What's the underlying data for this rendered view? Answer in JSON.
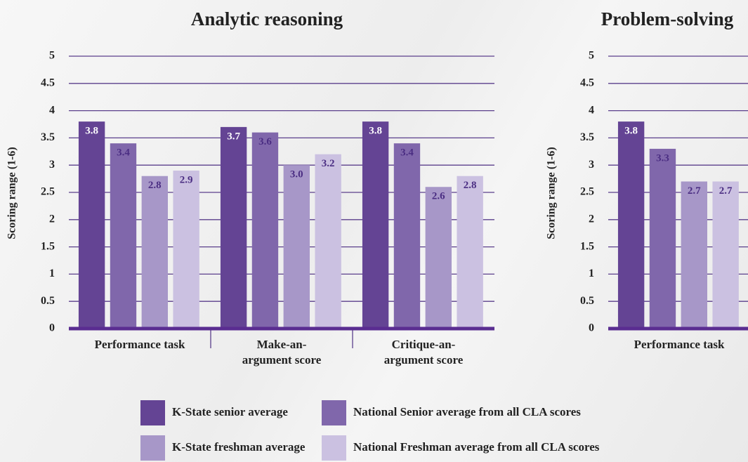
{
  "chart_data": [
    {
      "type": "bar",
      "title": "Analytic reasoning",
      "y_label": "Scoring range (1-6)",
      "categories": [
        "Performance task",
        "Make-an-argument score",
        "Critique-an-argument score"
      ],
      "series": [
        {
          "name": "K-State senior average",
          "color": "#644494",
          "values": [
            3.8,
            3.7,
            3.8
          ]
        },
        {
          "name": "National Senior average from all CLA scores",
          "color": "#8067ab",
          "values": [
            3.4,
            3.6,
            3.4
          ]
        },
        {
          "name": "K-State freshman average",
          "color": "#a797c8",
          "values": [
            2.8,
            3.0,
            2.6
          ],
          "value_labels": [
            "2.8",
            "3.0",
            "2.6"
          ]
        },
        {
          "name": "National Freshman average from all CLA scores",
          "color": "#cbc1e1",
          "values": [
            2.9,
            3.2,
            2.8
          ]
        }
      ],
      "ylim": [
        0,
        5
      ],
      "yticks": [
        0,
        0.5,
        1,
        1.5,
        2,
        2.5,
        3,
        3.5,
        4,
        4.5,
        5
      ],
      "grid": true
    },
    {
      "type": "bar",
      "title": "Problem-solving",
      "y_label": "Scoring range (1-6)",
      "categories": [
        "Performance task"
      ],
      "series": [
        {
          "color": "#644494",
          "values": [
            3.8
          ]
        },
        {
          "color": "#8067ab",
          "values": [
            3.3
          ]
        },
        {
          "color": "#a797c8",
          "values": [
            2.7
          ]
        },
        {
          "color": "#cbc1e1",
          "values": [
            2.7
          ]
        }
      ],
      "ylim": [
        0,
        5
      ],
      "yticks": [
        0,
        0.5,
        1,
        1.5,
        2,
        2.5,
        3,
        3.5,
        4,
        4.5,
        5
      ],
      "grid": true
    }
  ]
}
